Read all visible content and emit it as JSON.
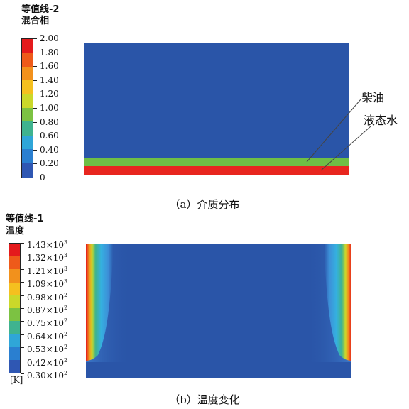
{
  "panel_a": {
    "legend_title_1": "等值线-2",
    "legend_title_2": "混合相",
    "ticks": [
      "2.00",
      "1.80",
      "1.60",
      "1.40",
      "1.20",
      "1.00",
      "0.80",
      "0.60",
      "0.40",
      "0.20",
      "0"
    ],
    "colorbar_colors": [
      "#e41a1c",
      "#ee5a1a",
      "#f2911c",
      "#f5c01f",
      "#cbd82a",
      "#7cc242",
      "#3fb38f",
      "#2fa6d8",
      "#2a7fd0",
      "#2f57b3"
    ],
    "labels": {
      "diesel": "柴油",
      "water": "液态水"
    },
    "caption": "（a）介质分布",
    "layers": {
      "top_color": "#2a55a8",
      "diesel_color": "#6fbf45",
      "water_color": "#e8261f"
    }
  },
  "panel_b": {
    "legend_title_1": "等值线-1",
    "legend_title_2": "温度",
    "ticks": [
      {
        "m": "1.43",
        "e": "3"
      },
      {
        "m": "1.32",
        "e": "3"
      },
      {
        "m": "1.21",
        "e": "3"
      },
      {
        "m": "1.09",
        "e": "3"
      },
      {
        "m": "0.98",
        "e": "2"
      },
      {
        "m": "0.87",
        "e": "2"
      },
      {
        "m": "0.75",
        "e": "2"
      },
      {
        "m": "0.64",
        "e": "2"
      },
      {
        "m": "0.53",
        "e": "2"
      },
      {
        "m": "0.42",
        "e": "2"
      },
      {
        "m": "0.30",
        "e": "2"
      }
    ],
    "times_label": "×10",
    "unit": "[K]",
    "colorbar_colors": [
      "#e41a1c",
      "#ee5a1a",
      "#f2911c",
      "#f5c01f",
      "#cbd82a",
      "#7cc242",
      "#3fb38f",
      "#2fa6d8",
      "#2a7fd0",
      "#2f57b3"
    ],
    "caption": "（b）温度变化",
    "field_color": "#2a55a8"
  }
}
